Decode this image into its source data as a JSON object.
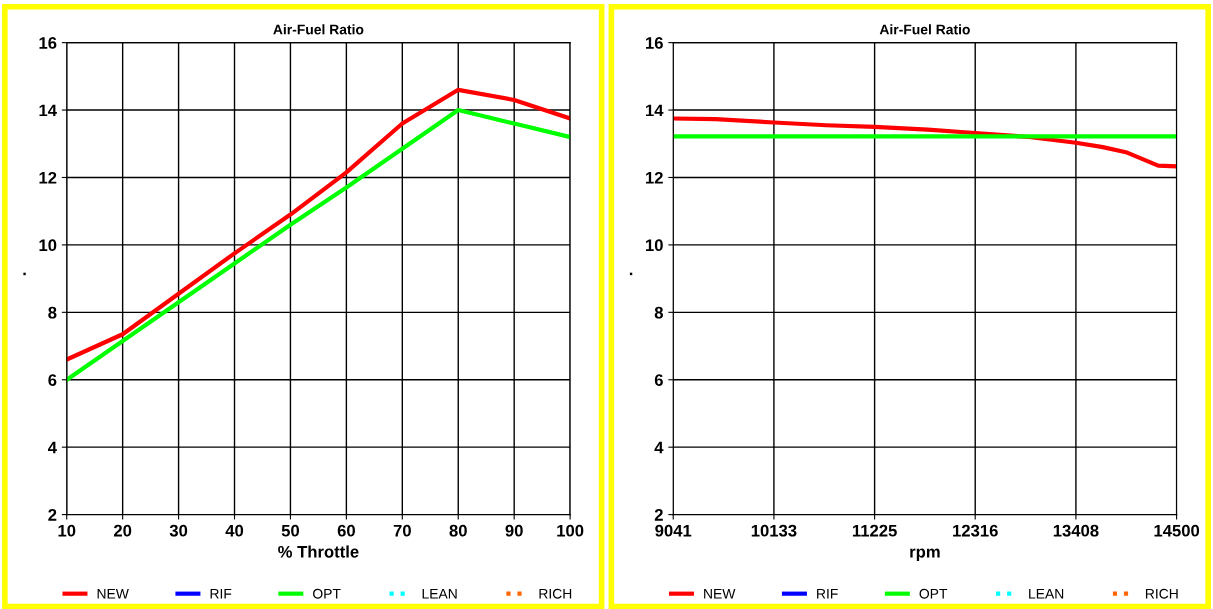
{
  "chart_data": [
    {
      "type": "line",
      "title": "Air-Fuel Ratio",
      "xlabel": "% Throttle",
      "ylabel": ".",
      "x": [
        10,
        20,
        30,
        40,
        50,
        60,
        70,
        80,
        90,
        100
      ],
      "xlim": [
        10,
        100
      ],
      "xticks": [
        10,
        20,
        30,
        40,
        50,
        60,
        70,
        80,
        90,
        100
      ],
      "ylim": [
        2,
        16
      ],
      "yticks": [
        2,
        4,
        6,
        8,
        10,
        12,
        14,
        16
      ],
      "grid": true,
      "legend": "bottom",
      "series": [
        {
          "name": "NEW",
          "color": "#ff0000",
          "line_style": "solid",
          "values": [
            6.6,
            7.35,
            8.55,
            9.75,
            10.9,
            12.15,
            13.6,
            14.6,
            14.3,
            13.75
          ]
        },
        {
          "name": "RIF",
          "color": "#0000ff",
          "line_style": "solid",
          "values": [
            null,
            null,
            null,
            null,
            null,
            null,
            null,
            null,
            null,
            null
          ]
        },
        {
          "name": "OPT",
          "color": "#00ff00",
          "line_style": "solid",
          "values": [
            6.0,
            7.15,
            8.3,
            9.45,
            10.6,
            11.7,
            12.85,
            14.0,
            13.6,
            13.2
          ]
        },
        {
          "name": "LEAN",
          "color": "#00ffff",
          "line_style": "dotted",
          "values": [
            null,
            null,
            null,
            null,
            null,
            null,
            null,
            null,
            null,
            null
          ]
        },
        {
          "name": "RICH",
          "color": "#ff6600",
          "line_style": "dotted",
          "values": [
            null,
            null,
            null,
            null,
            null,
            null,
            null,
            null,
            null,
            null
          ]
        }
      ]
    },
    {
      "type": "line",
      "title": "Air-Fuel Ratio",
      "xlabel": "rpm",
      "ylabel": ".",
      "xlim": [
        9041,
        14500
      ],
      "xticks": [
        9041,
        10133,
        11225,
        12316,
        13408,
        14500
      ],
      "ylim": [
        2,
        16
      ],
      "yticks": [
        2,
        4,
        6,
        8,
        10,
        12,
        14,
        16
      ],
      "grid": true,
      "legend": "bottom",
      "series": [
        {
          "name": "NEW",
          "color": "#ff0000",
          "line_style": "solid",
          "x": [
            9041,
            9500,
            10133,
            10700,
            11225,
            11800,
            12316,
            12900,
            13408,
            13700,
            13950,
            14300,
            14500
          ],
          "values": [
            13.75,
            13.73,
            13.63,
            13.55,
            13.5,
            13.42,
            13.32,
            13.2,
            13.03,
            12.9,
            12.75,
            12.35,
            12.33
          ]
        },
        {
          "name": "RIF",
          "color": "#0000ff",
          "line_style": "solid"
        },
        {
          "name": "OPT",
          "color": "#00ff00",
          "line_style": "solid",
          "x": [
            9041,
            14500
          ],
          "values": [
            13.22,
            13.22
          ]
        },
        {
          "name": "LEAN",
          "color": "#00ffff",
          "line_style": "dotted"
        },
        {
          "name": "RICH",
          "color": "#ff6600",
          "line_style": "dotted"
        }
      ]
    }
  ]
}
